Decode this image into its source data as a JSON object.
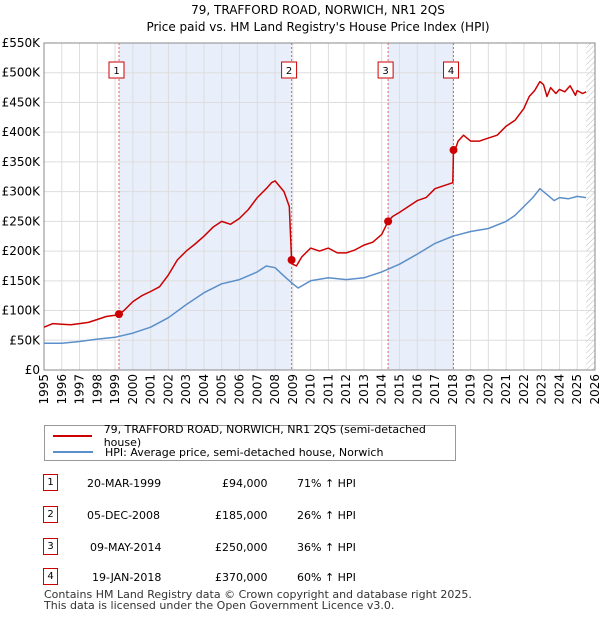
{
  "chart_data": {
    "type": "line",
    "title": "79, TRAFFORD ROAD, NORWICH, NR1 2QS",
    "subtitle": "Price paid vs. HM Land Registry's House Price Index (HPI)",
    "xlabel": "",
    "ylabel": "",
    "xlim": [
      1995,
      2026
    ],
    "ylim": [
      0,
      550000
    ],
    "y_ticks": [
      0,
      50000,
      100000,
      150000,
      200000,
      250000,
      300000,
      350000,
      400000,
      450000,
      500000,
      550000
    ],
    "y_tick_labels": [
      "£0",
      "£50K",
      "£100K",
      "£150K",
      "£200K",
      "£250K",
      "£300K",
      "£350K",
      "£400K",
      "£450K",
      "£500K",
      "£550K"
    ],
    "x_ticks": [
      1995,
      1996,
      1997,
      1998,
      1999,
      2000,
      2001,
      2002,
      2003,
      2004,
      2005,
      2006,
      2007,
      2008,
      2009,
      2010,
      2011,
      2012,
      2013,
      2014,
      2015,
      2016,
      2017,
      2018,
      2019,
      2020,
      2021,
      2022,
      2023,
      2024,
      2025,
      2026
    ],
    "x_tick_labels": [
      "1995",
      "1996",
      "1997",
      "1998",
      "1999",
      "2000",
      "2001",
      "2002",
      "2003",
      "2004",
      "2005",
      "2006",
      "2007",
      "2008",
      "2009",
      "2010",
      "2011",
      "2012",
      "2013",
      "2014",
      "2015",
      "2016",
      "2017",
      "2018",
      "2019",
      "2020",
      "2021",
      "2022",
      "2023",
      "2024",
      "2025",
      "2026"
    ],
    "grid": true,
    "series": [
      {
        "name": "79, TRAFFORD ROAD, NORWICH, NR1 2QS (semi-detached house)",
        "color": "#cc0000",
        "x": [
          1995.0,
          1995.5,
          1996.0,
          1996.5,
          1997.0,
          1997.5,
          1998.0,
          1998.5,
          1999.0,
          1999.22,
          1999.5,
          2000.0,
          2000.5,
          2001.0,
          2001.5,
          2002.0,
          2002.5,
          2003.0,
          2003.5,
          2004.0,
          2004.5,
          2005.0,
          2005.5,
          2006.0,
          2006.5,
          2007.0,
          2007.5,
          2007.8,
          2008.0,
          2008.5,
          2008.8,
          2008.93,
          2009.0,
          2009.2,
          2009.5,
          2010.0,
          2010.5,
          2011.0,
          2011.5,
          2012.0,
          2012.5,
          2013.0,
          2013.5,
          2014.0,
          2014.36,
          2014.6,
          2015.0,
          2015.5,
          2016.0,
          2016.5,
          2017.0,
          2017.5,
          2018.0,
          2018.04,
          2018.1,
          2018.3,
          2018.6,
          2019.0,
          2019.5,
          2020.0,
          2020.5,
          2021.0,
          2021.5,
          2022.0,
          2022.3,
          2022.6,
          2022.9,
          2023.1,
          2023.3,
          2023.5,
          2023.8,
          2024.0,
          2024.3,
          2024.6,
          2024.9,
          2025.0,
          2025.3,
          2025.5
        ],
        "values": [
          72000,
          78000,
          77000,
          76000,
          78000,
          80000,
          85000,
          90000,
          92000,
          94000,
          100000,
          115000,
          125000,
          132000,
          140000,
          160000,
          185000,
          200000,
          212000,
          225000,
          240000,
          250000,
          245000,
          255000,
          270000,
          290000,
          305000,
          315000,
          318000,
          300000,
          275000,
          185000,
          178000,
          175000,
          190000,
          205000,
          200000,
          205000,
          197000,
          197000,
          202000,
          210000,
          215000,
          228000,
          250000,
          258000,
          265000,
          275000,
          285000,
          290000,
          305000,
          310000,
          315000,
          370000,
          368000,
          385000,
          395000,
          385000,
          385000,
          390000,
          395000,
          410000,
          420000,
          440000,
          460000,
          470000,
          485000,
          480000,
          460000,
          475000,
          465000,
          472000,
          468000,
          478000,
          462000,
          470000,
          465000,
          468000
        ]
      },
      {
        "name": "HPI: Average price, semi-detached house, Norwich",
        "color": "#5b8fc9",
        "x": [
          1995.0,
          1996.0,
          1997.0,
          1998.0,
          1999.0,
          2000.0,
          2001.0,
          2002.0,
          2003.0,
          2004.0,
          2005.0,
          2006.0,
          2007.0,
          2007.5,
          2008.0,
          2008.5,
          2009.0,
          2009.3,
          2010.0,
          2011.0,
          2012.0,
          2013.0,
          2014.0,
          2015.0,
          2016.0,
          2017.0,
          2018.0,
          2019.0,
          2020.0,
          2021.0,
          2021.5,
          2022.0,
          2022.5,
          2022.9,
          2023.3,
          2023.7,
          2024.0,
          2024.5,
          2025.0,
          2025.5
        ],
        "values": [
          45000,
          45000,
          48000,
          52000,
          55000,
          62000,
          72000,
          88000,
          110000,
          130000,
          145000,
          152000,
          165000,
          175000,
          172000,
          158000,
          145000,
          138000,
          150000,
          155000,
          152000,
          155000,
          165000,
          178000,
          195000,
          213000,
          225000,
          233000,
          238000,
          250000,
          260000,
          275000,
          290000,
          305000,
          295000,
          285000,
          290000,
          288000,
          292000,
          290000
        ]
      }
    ],
    "sales": [
      {
        "num": "1",
        "x": 1999.22,
        "price": 94000
      },
      {
        "num": "2",
        "x": 2008.93,
        "price": 185000
      },
      {
        "num": "3",
        "x": 2014.36,
        "price": 250000
      },
      {
        "num": "4",
        "x": 2018.04,
        "price": 370000
      }
    ],
    "shaded_ranges": [
      [
        1999.22,
        2008.93
      ],
      [
        2014.36,
        2018.04
      ]
    ],
    "future_from": 2025.5
  },
  "legend": {
    "red_label": "79, TRAFFORD ROAD, NORWICH, NR1 2QS (semi-detached house)",
    "blue_label": "HPI: Average price, semi-detached house, Norwich"
  },
  "sales_table": [
    {
      "num": "1",
      "date": "20-MAR-1999",
      "price": "£94,000",
      "hpi": "71% ↑ HPI"
    },
    {
      "num": "2",
      "date": "05-DEC-2008",
      "price": "£185,000",
      "hpi": "26% ↑ HPI"
    },
    {
      "num": "3",
      "date": "09-MAY-2014",
      "price": "£250,000",
      "hpi": "36% ↑ HPI"
    },
    {
      "num": "4",
      "date": "19-JAN-2018",
      "price": "£370,000",
      "hpi": "60% ↑ HPI"
    }
  ],
  "footer": {
    "line1": "Contains HM Land Registry data © Crown copyright and database right 2025.",
    "line2": "This data is licensed under the Open Government Licence v3.0."
  },
  "colors": {
    "price_line": "#cc0000",
    "hpi_line": "#5b8fc9",
    "shade": "#e8eefa",
    "grid": "#dddddd"
  }
}
